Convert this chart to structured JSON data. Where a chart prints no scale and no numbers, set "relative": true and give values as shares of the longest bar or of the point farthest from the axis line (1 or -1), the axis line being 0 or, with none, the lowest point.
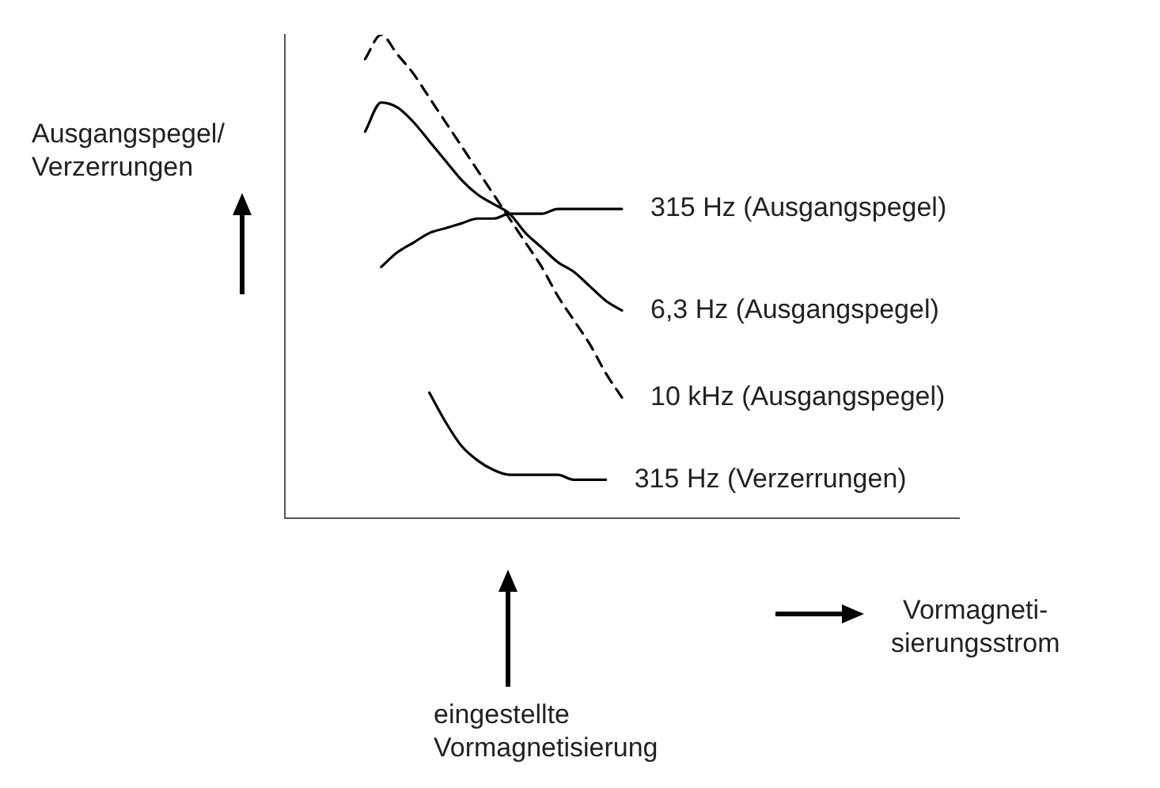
{
  "chart_data": {
    "type": "line",
    "relative": true,
    "legend": false,
    "grid": false,
    "marker": "none",
    "ylabel": "Ausgangspegel/\nVerzerrungen",
    "xlabel": "Vormagneti-\nsierungsstrom",
    "annotations": [
      "eingestellte\nVormagnetisierung"
    ],
    "categories": [
      null,
      null,
      null,
      null,
      null,
      null,
      null,
      null,
      null,
      null,
      null,
      null,
      null,
      null,
      null,
      null,
      null,
      null,
      null,
      null,
      null,
      null,
      null,
      null,
      null,
      null,
      null,
      null,
      null,
      null,
      null,
      null,
      null,
      null,
      null,
      null,
      null,
      null,
      null,
      null,
      null,
      null,
      null
    ],
    "series": [
      {
        "name": "315 Hz (Ausgangspegel)",
        "color": "#000000",
        "line_style": "solid",
        "values": [
          null,
          null,
          null,
          null,
          null,
          null,
          0.52,
          0.55,
          0.57,
          0.59,
          0.6,
          0.61,
          0.62,
          0.62,
          0.63,
          0.63,
          0.63,
          0.64,
          0.64,
          0.64,
          0.64,
          0.64,
          null,
          null,
          null,
          null,
          null,
          null,
          null,
          null,
          null,
          null,
          null,
          null,
          null,
          null,
          null,
          null,
          null,
          null,
          null,
          null,
          null
        ]
      },
      {
        "name": "6,3 Hz (Ausgangspegel)",
        "color": "#000000",
        "line_style": "solid",
        "values": [
          null,
          null,
          null,
          null,
          null,
          0.8,
          0.86,
          0.85,
          0.82,
          0.78,
          0.74,
          0.7,
          0.67,
          0.65,
          0.63,
          0.59,
          0.56,
          0.53,
          0.51,
          0.48,
          0.45,
          0.43,
          null,
          null,
          null,
          null,
          null,
          null,
          null,
          null,
          null,
          null,
          null,
          null,
          null,
          null,
          null,
          null,
          null,
          null,
          null,
          null,
          null
        ]
      },
      {
        "name": "10 kHz (Ausgangspegel)",
        "color": "#000000",
        "line_style": "dashed",
        "values": [
          null,
          null,
          null,
          null,
          null,
          0.95,
          1,
          0.96,
          0.92,
          0.87,
          0.82,
          0.77,
          0.72,
          0.67,
          0.62,
          0.57,
          0.52,
          0.46,
          0.41,
          0.36,
          0.3,
          0.25,
          null,
          null,
          null,
          null,
          null,
          null,
          null,
          null,
          null,
          null,
          null,
          null,
          null,
          null,
          null,
          null,
          null,
          null,
          null,
          null,
          null
        ]
      },
      {
        "name": "315 Hz (Verzerrungen)",
        "color": "#000000",
        "line_style": "solid",
        "values": [
          null,
          null,
          null,
          null,
          null,
          null,
          null,
          null,
          null,
          0.26,
          0.2,
          0.15,
          0.12,
          0.1,
          0.09,
          0.09,
          0.09,
          0.09,
          0.08,
          0.08,
          0.08,
          null,
          null,
          null,
          null,
          null,
          null,
          null,
          null,
          null,
          null,
          null,
          null,
          null,
          null,
          null,
          null,
          null,
          null,
          null,
          null,
          null,
          null
        ]
      }
    ]
  }
}
